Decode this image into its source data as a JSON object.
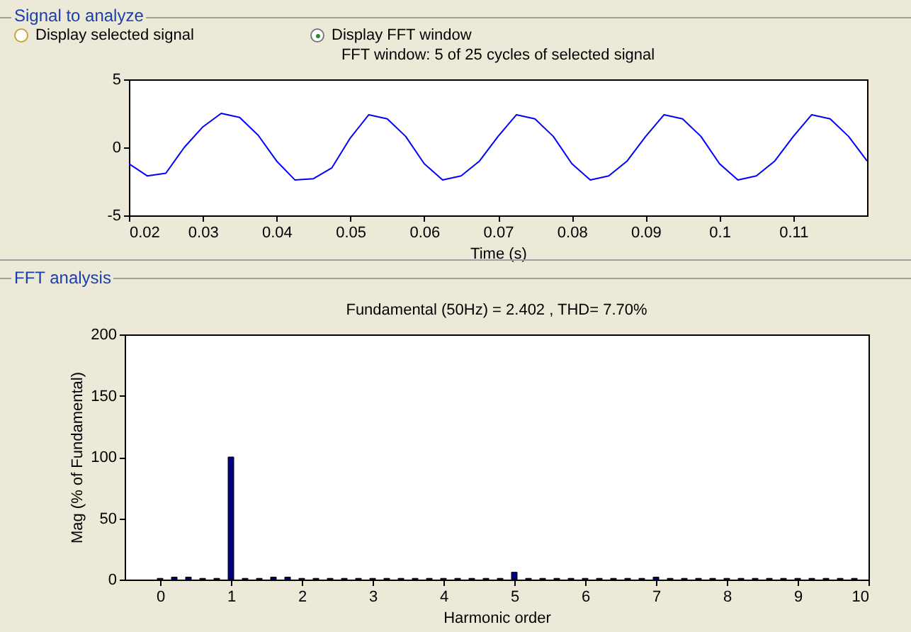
{
  "chart_data": [
    {
      "type": "other",
      "annotations": [
        "Signal to analyze",
        "Display selected signal",
        "Display FFT window",
        "FFT analysis"
      ]
    },
    {
      "type": "line",
      "title": "FFT window: 5 of 25 cycles of selected signal",
      "xlabel": "Time (s)",
      "xlim": [
        0.02,
        0.12
      ],
      "xticks": [
        0.02,
        0.03,
        0.04,
        0.05,
        0.06,
        0.07,
        0.08,
        0.09,
        0.1,
        0.11
      ],
      "ylim": [
        -5,
        5
      ],
      "yticks": [
        -5,
        0,
        5
      ],
      "series": [
        {
          "color": "#0000ff",
          "x": [
            0.02,
            0.0225,
            0.025,
            0.0275,
            0.03,
            0.0325,
            0.035,
            0.0375,
            0.04,
            0.0425,
            0.045,
            0.0475,
            0.05,
            0.0525,
            0.055,
            0.0575,
            0.06,
            0.0625,
            0.065,
            0.0675,
            0.07,
            0.0725,
            0.075,
            0.0775,
            0.08,
            0.0825,
            0.085,
            0.0875,
            0.09,
            0.0925,
            0.095,
            0.0975,
            0.1,
            0.1025,
            0.105,
            0.1075,
            0.11,
            0.1125,
            0.115,
            0.1175,
            0.12
          ],
          "values": [
            -1.2,
            -2.1,
            -1.9,
            0.0,
            1.5,
            2.5,
            2.2,
            0.9,
            -1.0,
            -2.4,
            -2.3,
            -1.5,
            0.7,
            2.4,
            2.1,
            0.8,
            -1.2,
            -2.4,
            -2.1,
            -1.0,
            0.8,
            2.4,
            2.1,
            0.8,
            -1.2,
            -2.4,
            -2.1,
            -1.0,
            0.8,
            2.4,
            2.1,
            0.8,
            -1.2,
            -2.4,
            -2.1,
            -1.0,
            0.8,
            2.4,
            2.1,
            0.8,
            -1.0
          ]
        }
      ]
    },
    {
      "type": "bar",
      "title": "Fundamental (50Hz) = 2.402 , THD= 7.70%",
      "xlabel": "Harmonic order",
      "ylabel": "Mag (% of Fundamental)",
      "xlim": [
        -0.5,
        10
      ],
      "xticks": [
        0,
        1,
        2,
        3,
        4,
        5,
        6,
        7,
        8,
        9,
        10
      ],
      "ylim": [
        0,
        200
      ],
      "yticks": [
        0,
        50,
        100,
        150,
        200
      ],
      "series": [
        {
          "color": "#000080",
          "x": [
            0,
            0.2,
            0.4,
            0.6,
            0.8,
            1,
            1.2,
            1.4,
            1.6,
            1.8,
            2,
            2.2,
            2.4,
            2.6,
            2.8,
            3,
            3.2,
            3.4,
            3.6,
            3.8,
            4,
            4.2,
            4.4,
            4.6,
            4.8,
            5,
            5.2,
            5.4,
            5.6,
            5.8,
            6,
            6.2,
            6.4,
            6.6,
            6.8,
            7,
            7.2,
            7.4,
            7.6,
            7.8,
            8,
            8.2,
            8.4,
            8.6,
            8.8,
            9,
            9.2,
            9.4,
            9.6,
            9.8
          ],
          "values": [
            1,
            2,
            2,
            1,
            1,
            100,
            1,
            1,
            2,
            2,
            1,
            1,
            1,
            1,
            1,
            1,
            1,
            1,
            1,
            1,
            1,
            1,
            1,
            1,
            1,
            6,
            1,
            1,
            1,
            1,
            1,
            1,
            1,
            1,
            1,
            2,
            1,
            1,
            1,
            1,
            1,
            1,
            1,
            1,
            1,
            1,
            1,
            1,
            1,
            1
          ]
        }
      ]
    }
  ]
}
